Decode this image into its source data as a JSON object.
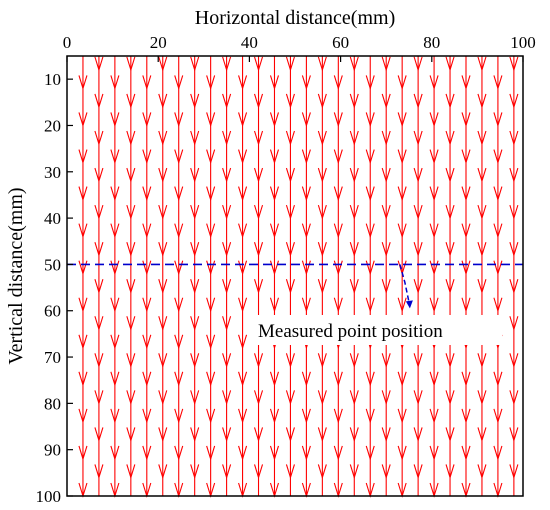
{
  "chart_data": {
    "type": "quiver",
    "xlabel": "Horizontal distance(mm)",
    "ylabel": "Vertical distance(mm)",
    "xlim": [
      0,
      100
    ],
    "ylim": [
      100,
      5
    ],
    "x_axis_position": "top",
    "y_axis_inverted": true,
    "x_ticks": [
      0,
      20,
      40,
      60,
      80,
      100
    ],
    "y_ticks": [
      10,
      20,
      30,
      40,
      50,
      60,
      70,
      80,
      90,
      100
    ],
    "grid": false,
    "vector_field": {
      "direction": "down",
      "x_positions": [
        3.5,
        10.5,
        17.5,
        24.5,
        31.5,
        38.5,
        45.5,
        52.5,
        59.5,
        66.5,
        73.5,
        80.5,
        87.5,
        94.5,
        101.5
      ],
      "x_positions_offset": [
        0,
        7,
        14,
        21,
        28,
        35,
        42,
        49,
        56,
        63,
        70,
        77,
        84,
        91,
        98
      ],
      "arrow_tip_rows": [
        12,
        20,
        28,
        36,
        44,
        52,
        60,
        68,
        76,
        84,
        92,
        100
      ],
      "color": "#ff0000"
    },
    "reference_line": {
      "y": 50,
      "style": "dashed",
      "color": "#0000cc"
    },
    "annotation": {
      "text": "Measured point position",
      "points_to": [
        73,
        50
      ],
      "arrow_color": "#0000cc"
    }
  }
}
